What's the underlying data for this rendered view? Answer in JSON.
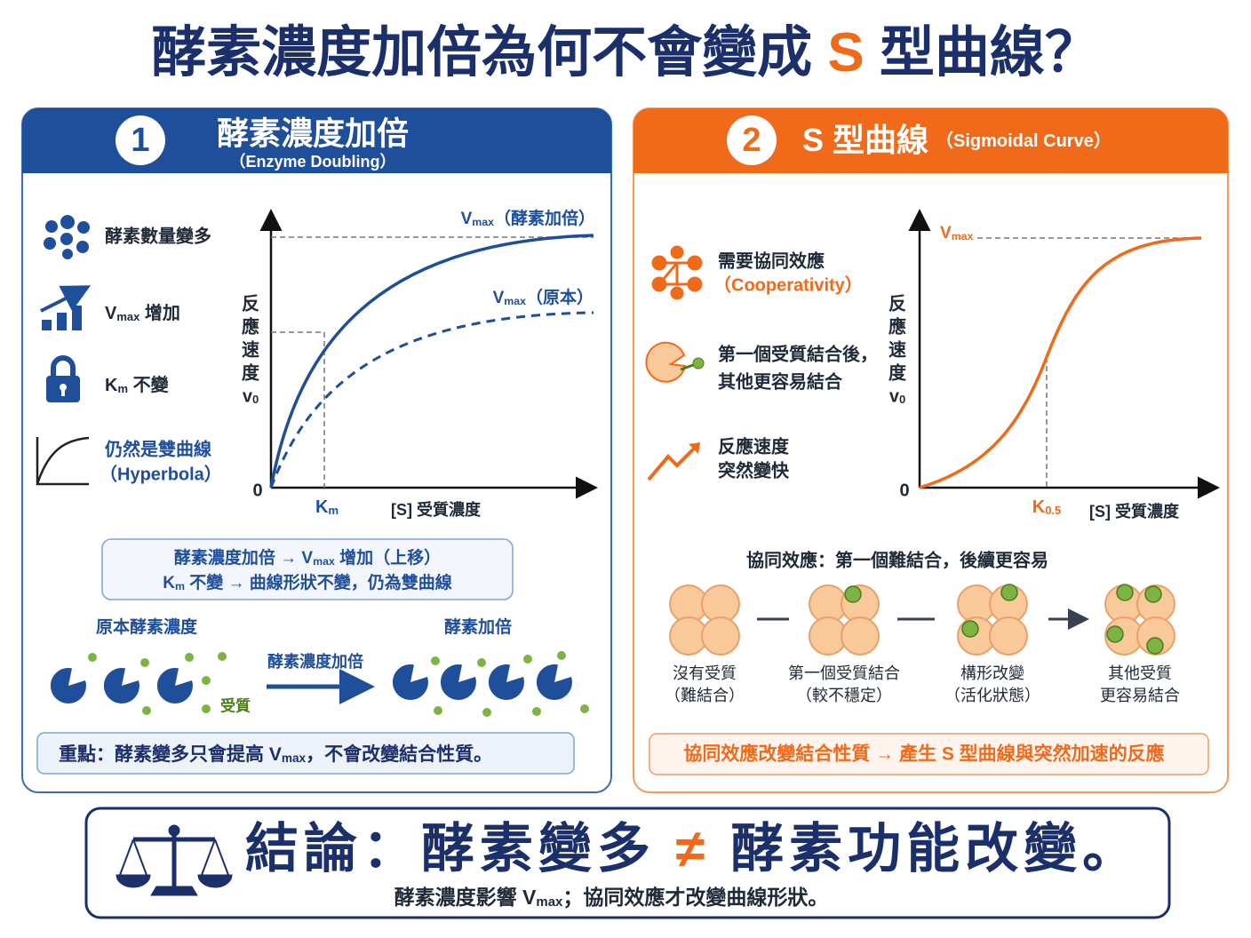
{
  "title": {
    "parts": [
      "酵素濃度加倍為何不會變成 ",
      "S",
      " 型曲線？"
    ]
  },
  "panel1": {
    "badge": "1",
    "title": "酵素濃度加倍",
    "subtitle": "（Enzyme Doubling）",
    "features": [
      {
        "text": "酵素數量變多"
      },
      {
        "v": "V",
        "sub": "max",
        "text": " 增加"
      },
      {
        "v": "K",
        "sub": "m",
        "text": " 不變"
      },
      {
        "text": "仍然是雙曲線",
        "text2": "（Hyperbola）"
      }
    ],
    "chart": {
      "y_label": [
        "反",
        "應",
        "速",
        "度",
        "v"
      ],
      "y_label_sub": "0",
      "origin": "0",
      "curve_doubled": {
        "v": "V",
        "sub": "max",
        "text": "（酵素加倍）"
      },
      "curve_original": {
        "v": "V",
        "sub": "max",
        "text": "（原本）"
      },
      "x_marker": {
        "v": "K",
        "sub": "m"
      },
      "x_label": "[S]  受質濃度"
    },
    "summary": [
      {
        "a": "酵素濃度加倍 → V",
        "sub": "max",
        "b": " 增加（上移）"
      },
      {
        "a": "K",
        "sub": "m",
        "b": " 不變 → 曲線形狀不變，仍為雙曲線"
      }
    ],
    "illustration": {
      "left_label": "原本酵素濃度",
      "right_label": "酵素加倍",
      "arrow_label": "酵素濃度加倍",
      "substrate_label": "受質"
    },
    "key_point": {
      "a": "重點：酵素變多只會提高 V",
      "sub": "max",
      "b": "，不會改變結合性質。"
    }
  },
  "panel2": {
    "badge": "2",
    "title": "S 型曲線",
    "subtitle": "（Sigmoidal Curve）",
    "features": [
      [
        "需要協同效應",
        "（Cooperativity）"
      ],
      [
        "第一個受質結合後，",
        "其他更容易結合"
      ],
      [
        "反應速度",
        "突然變快"
      ]
    ],
    "chart": {
      "y_label": [
        "反",
        "應",
        "速",
        "度",
        "v"
      ],
      "y_label_sub": "0",
      "origin": "0",
      "vmax": {
        "v": "V",
        "sub": "max"
      },
      "x_marker": {
        "v": "K",
        "sub": "0.5"
      },
      "x_label": "[S]  受質濃度"
    },
    "process_title": "協同效應：第一個難結合，後續更容易",
    "steps": [
      [
        "沒有受質",
        "（難結合）"
      ],
      [
        "第一個受質結合",
        "（較不穩定）"
      ],
      [
        "構形改變",
        "（活化狀態）"
      ],
      [
        "其他受質",
        "更容易結合"
      ]
    ],
    "key_point": "協同效應改變結合性質 → 產生 S 型曲線與突然加速的反應"
  },
  "conclusion": {
    "title": [
      "結論：酵素變多 ",
      "≠",
      " 酵素功能改變。"
    ],
    "subtitle": {
      "a": "酵素濃度影響 V",
      "sub": "max",
      "b": "；協同效應才改變曲線形狀。"
    }
  }
}
